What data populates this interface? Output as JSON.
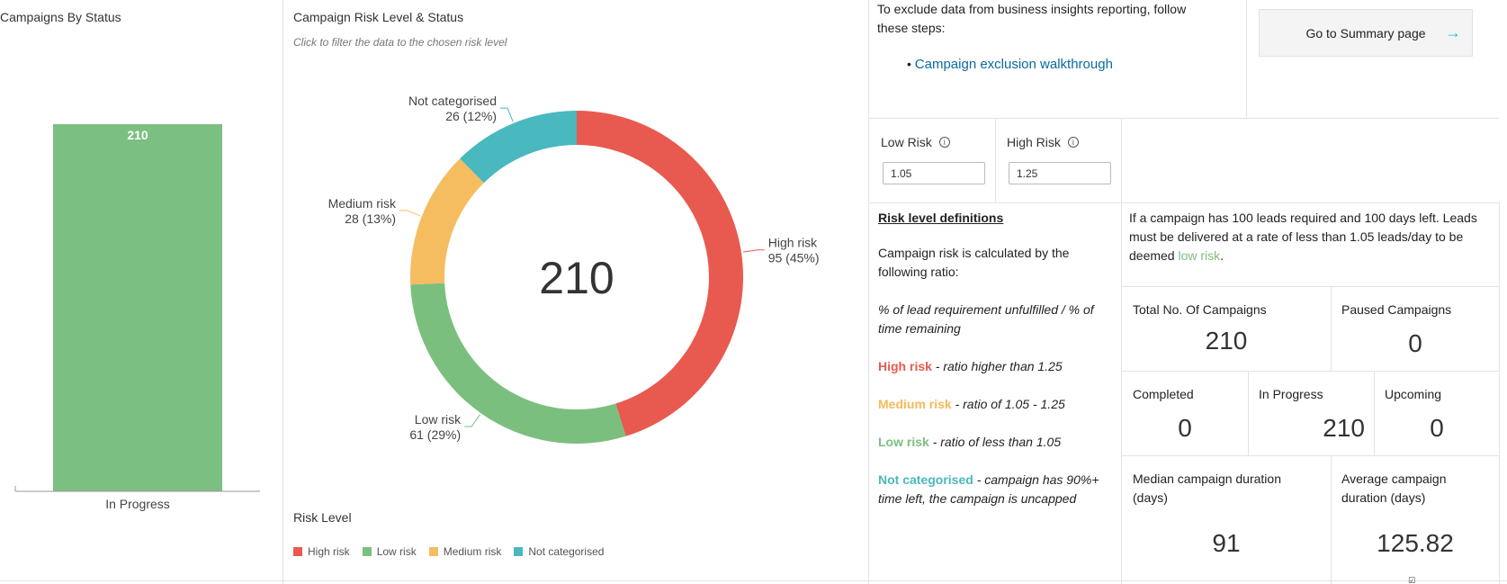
{
  "status_chart": {
    "title": "Campaigns By Status",
    "chart_data": {
      "type": "bar",
      "categories": [
        "In Progress"
      ],
      "values": [
        210
      ],
      "color": "#7bbf82"
    }
  },
  "risk_chart": {
    "title": "Campaign Risk Level & Status",
    "subtitle": "Click to filter the data to the chosen risk level",
    "center_value": "210",
    "legend_title": "Risk Level",
    "chart_data": {
      "type": "pie",
      "slices": [
        {
          "name": "High risk",
          "value": 95,
          "label": "High risk",
          "detail": "95 (45%)",
          "color": "#e85a4f"
        },
        {
          "name": "Low risk",
          "value": 61,
          "label": "Low risk",
          "detail": "61 (29%)",
          "color": "#7bbf7f"
        },
        {
          "name": "Medium risk",
          "value": 28,
          "label": "Medium risk",
          "detail": "28 (13%)",
          "color": "#f5bd60"
        },
        {
          "name": "Not categorised",
          "value": 26,
          "label": "Not categorised",
          "detail": "26 (12%)",
          "color": "#4ab8bf"
        }
      ]
    }
  },
  "exclusion": {
    "text_line1": "To exclude data from business insights reporting, follow",
    "text_line2": "these steps:",
    "bullet": "•",
    "link": "Campaign exclusion walkthrough"
  },
  "summary_button": {
    "label": "Go to Summary page",
    "arrow": "→"
  },
  "thresholds": {
    "low_label": "Low Risk",
    "low_value": "1.05",
    "high_label": "High Risk",
    "high_value": "1.25",
    "info_glyph": "i"
  },
  "definitions": {
    "heading": "Risk level definitions",
    "intro": "Campaign risk is calculated by the following ratio:",
    "ratio": "% of lead requirement unfulfilled / % of time remaining",
    "high_name": "High risk",
    "high_text": " - ratio higher than 1.25",
    "med_name": "Medium risk",
    "med_text": " - ratio of  1.05 - 1.25",
    "low_name": "Low risk",
    "low_text": " - ratio of less than 1.05",
    "nc_name": "Not categorised",
    "nc_text": " - campaign has 90%+ time left, the campaign is uncapped"
  },
  "example": {
    "text": "If a campaign has 100 leads required and 100 days left. Leads must be delivered at a rate of less than 1.05 leads/day to be deemed ",
    "highlight": "low risk",
    "end": "."
  },
  "stats": {
    "total_label": "Total No. Of Campaigns",
    "total_value": "210",
    "paused_label": "Paused Campaigns",
    "paused_value": "0",
    "completed_label": "Completed",
    "completed_value": "0",
    "inprogress_label": "In Progress",
    "inprogress_value": "210",
    "upcoming_label": "Upcoming",
    "upcoming_value": "0",
    "median_label": "Median campaign duration (days)",
    "median_value": "91",
    "average_label": "Average campaign duration (days)",
    "average_value": "125.82"
  },
  "corner_badge": "☑"
}
